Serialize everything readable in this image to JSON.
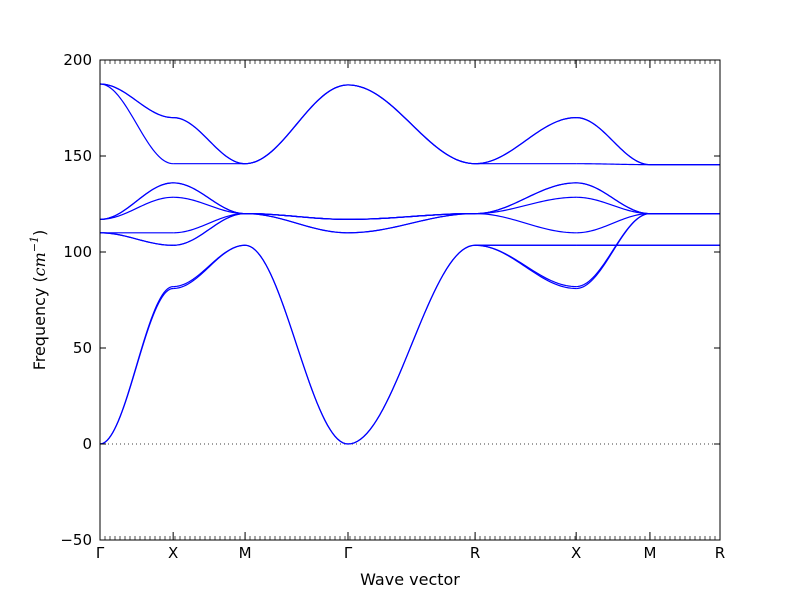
{
  "chart_data": {
    "type": "line",
    "xlabel": "Wave vector",
    "ylabel": "Frequency (",
    "ylabel_unit_base": "cm",
    "ylabel_unit_exp": "−1",
    "ylabel_close": ")",
    "ylim": [
      -50,
      200
    ],
    "yticks": [
      -50,
      0,
      50,
      100,
      150,
      200
    ],
    "ytick_labels": [
      "−50",
      "0",
      "50",
      "100",
      "150",
      "200"
    ],
    "x_path_positions": [
      0,
      0.118,
      0.234,
      0.4,
      0.605,
      0.768,
      0.887,
      1.0
    ],
    "x_path_labels": [
      "Γ",
      "X",
      "M",
      "Γ",
      "R",
      "X",
      "M",
      "R"
    ],
    "zero_line": {
      "y": 0,
      "style": "dotted"
    },
    "line_color": "#0000ff",
    "segments": [
      {
        "name": "Γ–X",
        "bands": [
          [
            0,
            81
          ],
          [
            0,
            82
          ],
          [
            110,
            103.5
          ],
          [
            110,
            103.5
          ],
          [
            110,
            110
          ],
          [
            117,
            128.5
          ],
          [
            117,
            136
          ],
          [
            117,
            136
          ],
          [
            187.5,
            146
          ],
          [
            187.5,
            170
          ],
          [
            187.5,
            170
          ]
        ]
      },
      {
        "name": "X–M",
        "bands": [
          [
            81,
            103.5
          ],
          [
            82,
            103.5
          ],
          [
            103.5,
            120
          ],
          [
            103.5,
            120
          ],
          [
            110,
            120
          ],
          [
            128.5,
            120
          ],
          [
            136,
            120
          ],
          [
            136,
            120
          ],
          [
            146,
            146
          ],
          [
            170,
            146
          ],
          [
            170,
            146
          ]
        ]
      },
      {
        "name": "M–Γ",
        "bands": [
          [
            103.5,
            0
          ],
          [
            103.5,
            0
          ],
          [
            120,
            110
          ],
          [
            120,
            110
          ],
          [
            120,
            117
          ],
          [
            120,
            117
          ],
          [
            120,
            117
          ],
          [
            120,
            117
          ],
          [
            146,
            187
          ],
          [
            146,
            187
          ],
          [
            146,
            187
          ]
        ]
      },
      {
        "name": "Γ–R",
        "bands": [
          [
            0,
            103.5
          ],
          [
            0,
            103.5
          ],
          [
            110,
            120
          ],
          [
            110,
            120
          ],
          [
            117,
            120
          ],
          [
            117,
            120
          ],
          [
            117,
            120
          ],
          [
            117,
            120
          ],
          [
            187,
            146
          ],
          [
            187,
            146
          ],
          [
            187,
            146
          ]
        ]
      },
      {
        "name": "R–X",
        "bands": [
          [
            103.5,
            81
          ],
          [
            103.5,
            82
          ],
          [
            103.5,
            103.5
          ],
          [
            103.5,
            103.5
          ],
          [
            120,
            110
          ],
          [
            120,
            128.5
          ],
          [
            120,
            136
          ],
          [
            120,
            136
          ],
          [
            146,
            146
          ],
          [
            146,
            170
          ],
          [
            146,
            170
          ]
        ]
      },
      {
        "name": "X–M",
        "bands": [
          [
            81,
            120
          ],
          [
            82,
            120
          ],
          [
            103.5,
            103.5
          ],
          [
            103.5,
            103.5
          ],
          [
            110,
            120
          ],
          [
            128.5,
            120
          ],
          [
            136,
            120
          ],
          [
            136,
            120
          ],
          [
            146,
            145.5
          ],
          [
            170,
            145.5
          ],
          [
            170,
            145.5
          ]
        ]
      },
      {
        "name": "M–R",
        "bands": [
          [
            120,
            120
          ],
          [
            120,
            120
          ],
          [
            103.5,
            103.5
          ],
          [
            103.5,
            103.5
          ],
          [
            120,
            120
          ],
          [
            120,
            120
          ],
          [
            120,
            120
          ],
          [
            120,
            120
          ],
          [
            145.5,
            145.5
          ],
          [
            145.5,
            145.5
          ],
          [
            145.5,
            145.5
          ]
        ]
      }
    ]
  }
}
